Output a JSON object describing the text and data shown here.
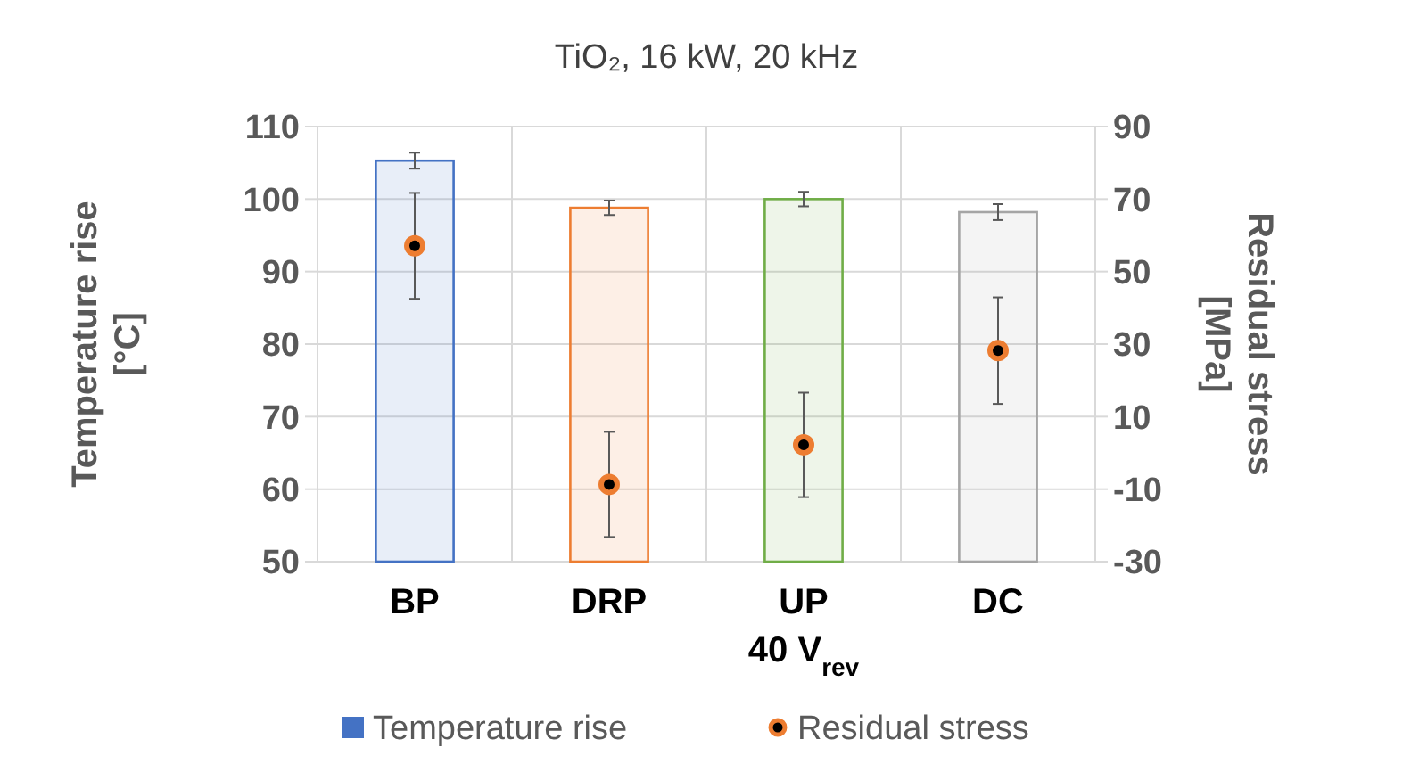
{
  "chart_data": {
    "type": "bar",
    "title": "TiO₂, 16 kW, 20 kHz",
    "ylabel": "Temperature rise\n[°C]",
    "y2label": "Residual stress\n[MPa]",
    "categories": [
      "BP",
      "DRP",
      "UP\n40 V$_{rev}$",
      "DC"
    ],
    "series": [
      {
        "name": "Temperature rise",
        "color": "#4472c4",
        "colors": [
          "#4472c4",
          "#ed7d31",
          "#70ad47",
          "#a5a5a5"
        ],
        "values": [
          105.3,
          98.8,
          100.0,
          98.2
        ],
        "errors": [
          1.1,
          1.0,
          1.0,
          1.1
        ]
      },
      {
        "name": "Residual stress",
        "type": "scatter",
        "axis": "y2",
        "color": "#ed7d31",
        "marker": "circle",
        "values": [
          57.1,
          -8.7,
          2.2,
          28.2
        ],
        "errors": [
          14.6,
          14.5,
          14.4,
          14.7
        ]
      }
    ],
    "ylim": [
      50,
      110
    ],
    "yticks": [
      50,
      60,
      70,
      80,
      90,
      100,
      110
    ],
    "y2lim": [
      -30,
      90
    ],
    "y2ticks": [
      -30,
      -10,
      10,
      30,
      50,
      70,
      90
    ],
    "grid": true,
    "legend": "bottom"
  }
}
